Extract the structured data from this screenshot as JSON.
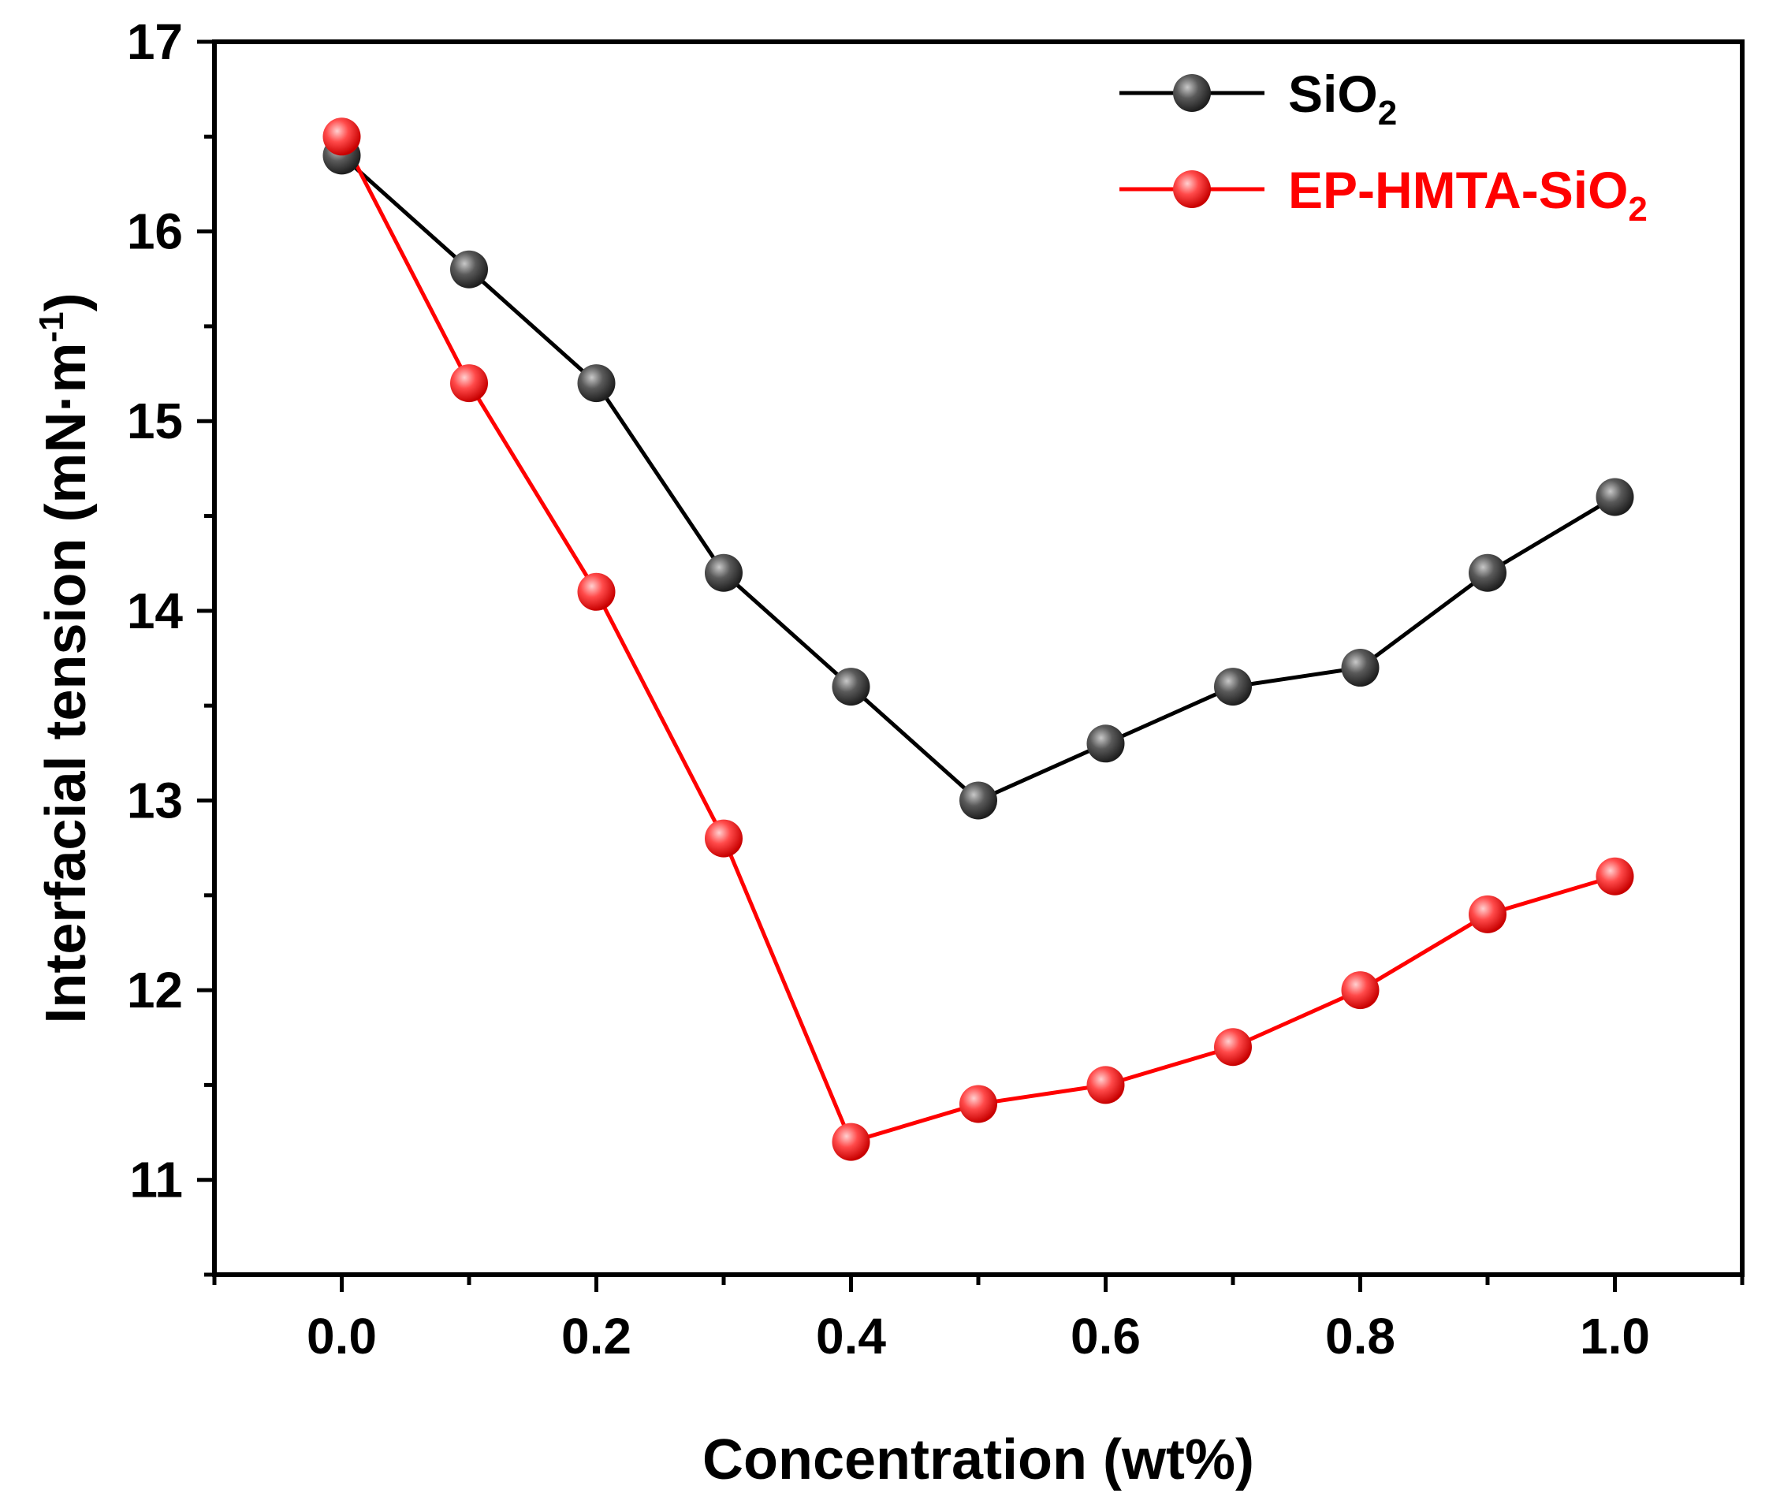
{
  "chart_data": {
    "type": "line",
    "title": "",
    "xlabel": "Concentration (wt%)",
    "ylabel": "Interfacial tension (mN·m",
    "ylabel_superscript": "-1",
    "ylabel_close": ")",
    "xlim": [
      -0.1,
      1.1
    ],
    "ylim": [
      10.5,
      17
    ],
    "xticks": [
      0.0,
      0.2,
      0.4,
      0.6,
      0.8,
      1.0
    ],
    "xtick_labels": [
      "0.0",
      "0.2",
      "0.4",
      "0.6",
      "0.8",
      "1.0"
    ],
    "yticks": [
      11,
      12,
      13,
      14,
      15,
      16,
      17
    ],
    "ytick_labels": [
      "11",
      "12",
      "13",
      "14",
      "15",
      "16",
      "17"
    ],
    "grid": false,
    "legend_position": "top-right",
    "x": [
      0.0,
      0.1,
      0.2,
      0.3,
      0.4,
      0.5,
      0.6,
      0.7,
      0.8,
      0.9,
      1.0
    ],
    "series": [
      {
        "name": "SiO",
        "name_subscript": "2",
        "color": "#000000",
        "marker_color": "#555555",
        "values": [
          16.4,
          15.8,
          15.2,
          14.2,
          13.6,
          13.0,
          13.3,
          13.6,
          13.7,
          14.2,
          14.6
        ]
      },
      {
        "name": "EP-HMTA-SiO",
        "name_subscript": "2",
        "color": "#ff0000",
        "marker_color": "#ff4444",
        "values": [
          16.5,
          15.2,
          14.1,
          12.8,
          11.2,
          11.4,
          11.5,
          11.7,
          12.0,
          12.4,
          12.6
        ]
      }
    ]
  }
}
